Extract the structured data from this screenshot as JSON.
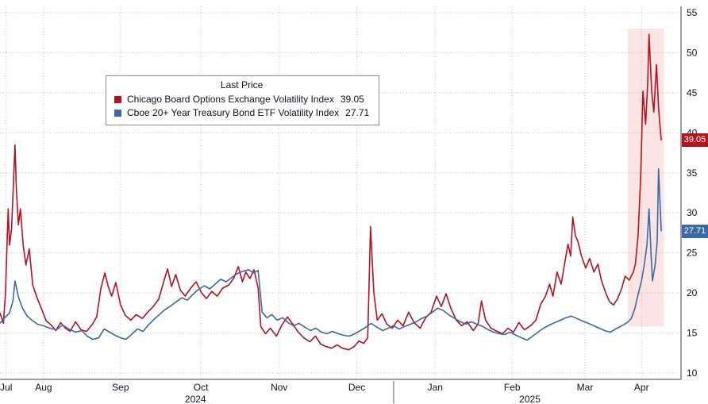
{
  "chart_data": {
    "type": "line",
    "title": "Last Price",
    "xlabel": "",
    "ylabel": "",
    "ylim": [
      9.2,
      55.8
    ],
    "yticks": [
      10,
      15,
      20,
      25,
      30,
      35,
      40,
      45,
      50,
      55
    ],
    "grid": "dotted",
    "legend_position": "top-left-box",
    "x_axis": {
      "months": [
        {
          "label": "Jul",
          "f": 0.009
        },
        {
          "label": "Aug",
          "f": 0.064
        },
        {
          "label": "Sep",
          "f": 0.177
        },
        {
          "label": "Oct",
          "f": 0.295
        },
        {
          "label": "Nov",
          "f": 0.41
        },
        {
          "label": "Dec",
          "f": 0.524
        },
        {
          "label": "Jan",
          "f": 0.639
        },
        {
          "label": "Feb",
          "f": 0.752
        },
        {
          "label": "Mar",
          "f": 0.859
        },
        {
          "label": "Apr",
          "f": 0.942
        }
      ],
      "years": [
        {
          "label": "2024",
          "f": 0.287
        },
        {
          "label": "2025",
          "f": 0.778
        }
      ],
      "year_divider_f": 0.578
    },
    "highlight_band": {
      "x0_f": 0.922,
      "x1_f": 0.975,
      "v_top": 53.0,
      "v_bottom": 15.8,
      "color": "rgba(235,90,90,0.16)"
    },
    "series": [
      {
        "name": "Chicago Board Options Exchange Volatility Index",
        "color": "#b5121f",
        "last_value": 39.05,
        "last_label": "39.05",
        "points": [
          [
            0,
            17.5
          ],
          [
            0.005,
            16.2
          ],
          [
            0.008,
            20
          ],
          [
            0.012,
            30.5
          ],
          [
            0.014,
            26
          ],
          [
            0.017,
            28
          ],
          [
            0.022,
            38.5
          ],
          [
            0.024,
            33
          ],
          [
            0.027,
            28.5
          ],
          [
            0.03,
            30.5
          ],
          [
            0.034,
            26
          ],
          [
            0.038,
            23.5
          ],
          [
            0.043,
            25.5
          ],
          [
            0.048,
            21
          ],
          [
            0.054,
            19.5
          ],
          [
            0.061,
            18
          ],
          [
            0.068,
            16.5
          ],
          [
            0.075,
            16
          ],
          [
            0.082,
            15.3
          ],
          [
            0.089,
            16.3
          ],
          [
            0.096,
            15.6
          ],
          [
            0.103,
            15.2
          ],
          [
            0.111,
            16.4
          ],
          [
            0.119,
            15.4
          ],
          [
            0.127,
            15.2
          ],
          [
            0.135,
            16
          ],
          [
            0.142,
            17
          ],
          [
            0.148,
            20.5
          ],
          [
            0.154,
            22.5
          ],
          [
            0.159,
            20.8
          ],
          [
            0.164,
            19.6
          ],
          [
            0.17,
            21.3
          ],
          [
            0.177,
            18.5
          ],
          [
            0.184,
            17.2
          ],
          [
            0.192,
            16.6
          ],
          [
            0.2,
            17.3
          ],
          [
            0.209,
            16.8
          ],
          [
            0.217,
            17.6
          ],
          [
            0.225,
            18.3
          ],
          [
            0.233,
            19.2
          ],
          [
            0.24,
            21.3
          ],
          [
            0.246,
            23
          ],
          [
            0.252,
            20.8
          ],
          [
            0.258,
            22.3
          ],
          [
            0.265,
            20.3
          ],
          [
            0.272,
            19.6
          ],
          [
            0.28,
            20.6
          ],
          [
            0.288,
            21.4
          ],
          [
            0.296,
            20
          ],
          [
            0.303,
            19.3
          ],
          [
            0.311,
            20.2
          ],
          [
            0.319,
            19.6
          ],
          [
            0.327,
            20.6
          ],
          [
            0.336,
            21
          ],
          [
            0.343,
            21.8
          ],
          [
            0.35,
            23.3
          ],
          [
            0.356,
            21.4
          ],
          [
            0.361,
            22.6
          ],
          [
            0.367,
            21.8
          ],
          [
            0.373,
            22.9
          ],
          [
            0.379,
            20.6
          ],
          [
            0.383,
            15.8
          ],
          [
            0.39,
            14.9
          ],
          [
            0.397,
            15.6
          ],
          [
            0.406,
            14.6
          ],
          [
            0.414,
            16
          ],
          [
            0.422,
            17
          ],
          [
            0.43,
            16.1
          ],
          [
            0.438,
            15.1
          ],
          [
            0.446,
            14.4
          ],
          [
            0.455,
            13.9
          ],
          [
            0.463,
            14.6
          ],
          [
            0.471,
            13.6
          ],
          [
            0.479,
            13.3
          ],
          [
            0.487,
            13.1
          ],
          [
            0.495,
            13.5
          ],
          [
            0.503,
            13.1
          ],
          [
            0.512,
            12.9
          ],
          [
            0.52,
            13.3
          ],
          [
            0.527,
            14
          ],
          [
            0.534,
            13.7
          ],
          [
            0.54,
            14.4
          ],
          [
            0.544,
            28.3
          ],
          [
            0.549,
            20
          ],
          [
            0.554,
            16.6
          ],
          [
            0.561,
            17.4
          ],
          [
            0.568,
            16.1
          ],
          [
            0.576,
            15.6
          ],
          [
            0.584,
            16.6
          ],
          [
            0.592,
            15.9
          ],
          [
            0.6,
            17.6
          ],
          [
            0.608,
            16.3
          ],
          [
            0.617,
            15.6
          ],
          [
            0.625,
            16.9
          ],
          [
            0.633,
            17.6
          ],
          [
            0.641,
            19.6
          ],
          [
            0.648,
            18.3
          ],
          [
            0.655,
            19.9
          ],
          [
            0.662,
            18.1
          ],
          [
            0.67,
            16.6
          ],
          [
            0.678,
            15.9
          ],
          [
            0.686,
            16.4
          ],
          [
            0.695,
            15.3
          ],
          [
            0.702,
            16.1
          ],
          [
            0.707,
            19
          ],
          [
            0.713,
            16.6
          ],
          [
            0.721,
            15.6
          ],
          [
            0.73,
            15.2
          ],
          [
            0.738,
            14.9
          ],
          [
            0.746,
            15.6
          ],
          [
            0.754,
            15.1
          ],
          [
            0.762,
            16.3
          ],
          [
            0.77,
            15.4
          ],
          [
            0.779,
            15.9
          ],
          [
            0.787,
            16.6
          ],
          [
            0.794,
            18.6
          ],
          [
            0.801,
            19.6
          ],
          [
            0.807,
            21.1
          ],
          [
            0.812,
            19.6
          ],
          [
            0.818,
            22.6
          ],
          [
            0.824,
            21.1
          ],
          [
            0.83,
            24.1
          ],
          [
            0.834,
            26.1
          ],
          [
            0.838,
            24.6
          ],
          [
            0.841,
            29.5
          ],
          [
            0.845,
            27.1
          ],
          [
            0.848,
            26.6
          ],
          [
            0.854,
            24.6
          ],
          [
            0.86,
            23.1
          ],
          [
            0.866,
            24.3
          ],
          [
            0.872,
            22.6
          ],
          [
            0.878,
            23.6
          ],
          [
            0.883,
            21.6
          ],
          [
            0.889,
            20.1
          ],
          [
            0.895,
            18.9
          ],
          [
            0.901,
            18.5
          ],
          [
            0.907,
            19.3
          ],
          [
            0.913,
            20.6
          ],
          [
            0.918,
            22.1
          ],
          [
            0.924,
            21.6
          ],
          [
            0.93,
            22.6
          ],
          [
            0.933,
            23.6
          ],
          [
            0.937,
            27.1
          ],
          [
            0.941,
            35.1
          ],
          [
            0.944,
            45.2
          ],
          [
            0.948,
            41.1
          ],
          [
            0.951,
            46.1
          ],
          [
            0.953,
            52.3
          ],
          [
            0.957,
            45.1
          ],
          [
            0.96,
            42.6
          ],
          [
            0.964,
            48.5
          ],
          [
            0.967,
            43.1
          ],
          [
            0.971,
            39.05
          ]
        ]
      },
      {
        "name": "Cboe 20+ Year Treasury Bond ETF Volatility Index",
        "color": "#3a68a8",
        "last_value": 27.71,
        "last_label": "27.71",
        "points": [
          [
            0,
            16.2
          ],
          [
            0.007,
            16.9
          ],
          [
            0.014,
            17.5
          ],
          [
            0.019,
            19
          ],
          [
            0.022,
            21.5
          ],
          [
            0.027,
            19.5
          ],
          [
            0.033,
            18.1
          ],
          [
            0.04,
            17.1
          ],
          [
            0.047,
            16.6
          ],
          [
            0.055,
            16.1
          ],
          [
            0.064,
            15.9
          ],
          [
            0.073,
            15.6
          ],
          [
            0.083,
            15.4
          ],
          [
            0.092,
            16
          ],
          [
            0.101,
            15.5
          ],
          [
            0.111,
            15.1
          ],
          [
            0.12,
            15.3
          ],
          [
            0.128,
            14.6
          ],
          [
            0.136,
            14.2
          ],
          [
            0.145,
            14.4
          ],
          [
            0.153,
            15.5
          ],
          [
            0.161,
            15.1
          ],
          [
            0.169,
            14.7
          ],
          [
            0.177,
            14.4
          ],
          [
            0.185,
            14.2
          ],
          [
            0.193,
            14.8
          ],
          [
            0.202,
            15.5
          ],
          [
            0.21,
            15.2
          ],
          [
            0.218,
            16
          ],
          [
            0.226,
            16.7
          ],
          [
            0.234,
            17.3
          ],
          [
            0.242,
            17.9
          ],
          [
            0.251,
            18.4
          ],
          [
            0.259,
            18.9
          ],
          [
            0.267,
            19.4
          ],
          [
            0.275,
            19.1
          ],
          [
            0.283,
            19.8
          ],
          [
            0.291,
            20.4
          ],
          [
            0.3,
            20.9
          ],
          [
            0.308,
            20.5
          ],
          [
            0.316,
            21.1
          ],
          [
            0.324,
            21.7
          ],
          [
            0.332,
            21.4
          ],
          [
            0.34,
            21.9
          ],
          [
            0.348,
            22.4
          ],
          [
            0.357,
            22.7
          ],
          [
            0.365,
            22.9
          ],
          [
            0.372,
            22.5
          ],
          [
            0.379,
            22.8
          ],
          [
            0.385,
            17.6
          ],
          [
            0.392,
            16.9
          ],
          [
            0.399,
            17.3
          ],
          [
            0.407,
            16.6
          ],
          [
            0.415,
            16.9
          ],
          [
            0.423,
            16.3
          ],
          [
            0.431,
            15.9
          ],
          [
            0.439,
            16.2
          ],
          [
            0.448,
            15.7
          ],
          [
            0.456,
            15.3
          ],
          [
            0.464,
            15.6
          ],
          [
            0.472,
            15.1
          ],
          [
            0.48,
            14.9
          ],
          [
            0.488,
            15.2
          ],
          [
            0.497,
            14.9
          ],
          [
            0.505,
            14.7
          ],
          [
            0.513,
            14.6
          ],
          [
            0.521,
            14.9
          ],
          [
            0.529,
            15.3
          ],
          [
            0.537,
            15.7
          ],
          [
            0.545,
            16.2
          ],
          [
            0.554,
            15.7
          ],
          [
            0.562,
            15.3
          ],
          [
            0.57,
            15.6
          ],
          [
            0.578,
            15.9
          ],
          [
            0.586,
            15.5
          ],
          [
            0.594,
            15.8
          ],
          [
            0.603,
            16.1
          ],
          [
            0.611,
            16.4
          ],
          [
            0.619,
            16.8
          ],
          [
            0.627,
            17.1
          ],
          [
            0.635,
            17.6
          ],
          [
            0.643,
            18.1
          ],
          [
            0.651,
            17.8
          ],
          [
            0.66,
            17.2
          ],
          [
            0.668,
            16.8
          ],
          [
            0.676,
            16.4
          ],
          [
            0.684,
            16.1
          ],
          [
            0.692,
            16.4
          ],
          [
            0.7,
            16.1
          ],
          [
            0.709,
            15.8
          ],
          [
            0.717,
            15.4
          ],
          [
            0.725,
            15.1
          ],
          [
            0.733,
            14.9
          ],
          [
            0.741,
            14.8
          ],
          [
            0.749,
            15.1
          ],
          [
            0.758,
            14.7
          ],
          [
            0.766,
            14.4
          ],
          [
            0.774,
            14.1
          ],
          [
            0.782,
            14.6
          ],
          [
            0.79,
            15.1
          ],
          [
            0.798,
            15.6
          ],
          [
            0.807,
            16
          ],
          [
            0.815,
            16.3
          ],
          [
            0.823,
            16.6
          ],
          [
            0.831,
            16.9
          ],
          [
            0.839,
            17.1
          ],
          [
            0.847,
            16.8
          ],
          [
            0.855,
            16.5
          ],
          [
            0.864,
            16.2
          ],
          [
            0.872,
            15.9
          ],
          [
            0.88,
            15.6
          ],
          [
            0.888,
            15.3
          ],
          [
            0.896,
            15.1
          ],
          [
            0.904,
            15.5
          ],
          [
            0.913,
            15.9
          ],
          [
            0.921,
            16.3
          ],
          [
            0.927,
            16.8
          ],
          [
            0.932,
            18
          ],
          [
            0.937,
            19.8
          ],
          [
            0.942,
            21.5
          ],
          [
            0.946,
            23.5
          ],
          [
            0.95,
            26
          ],
          [
            0.953,
            30.5
          ],
          [
            0.956,
            25
          ],
          [
            0.958,
            21.5
          ],
          [
            0.962,
            23.5
          ],
          [
            0.965,
            26.5
          ],
          [
            0.967,
            35.5
          ],
          [
            0.971,
            27.71
          ]
        ]
      }
    ]
  }
}
